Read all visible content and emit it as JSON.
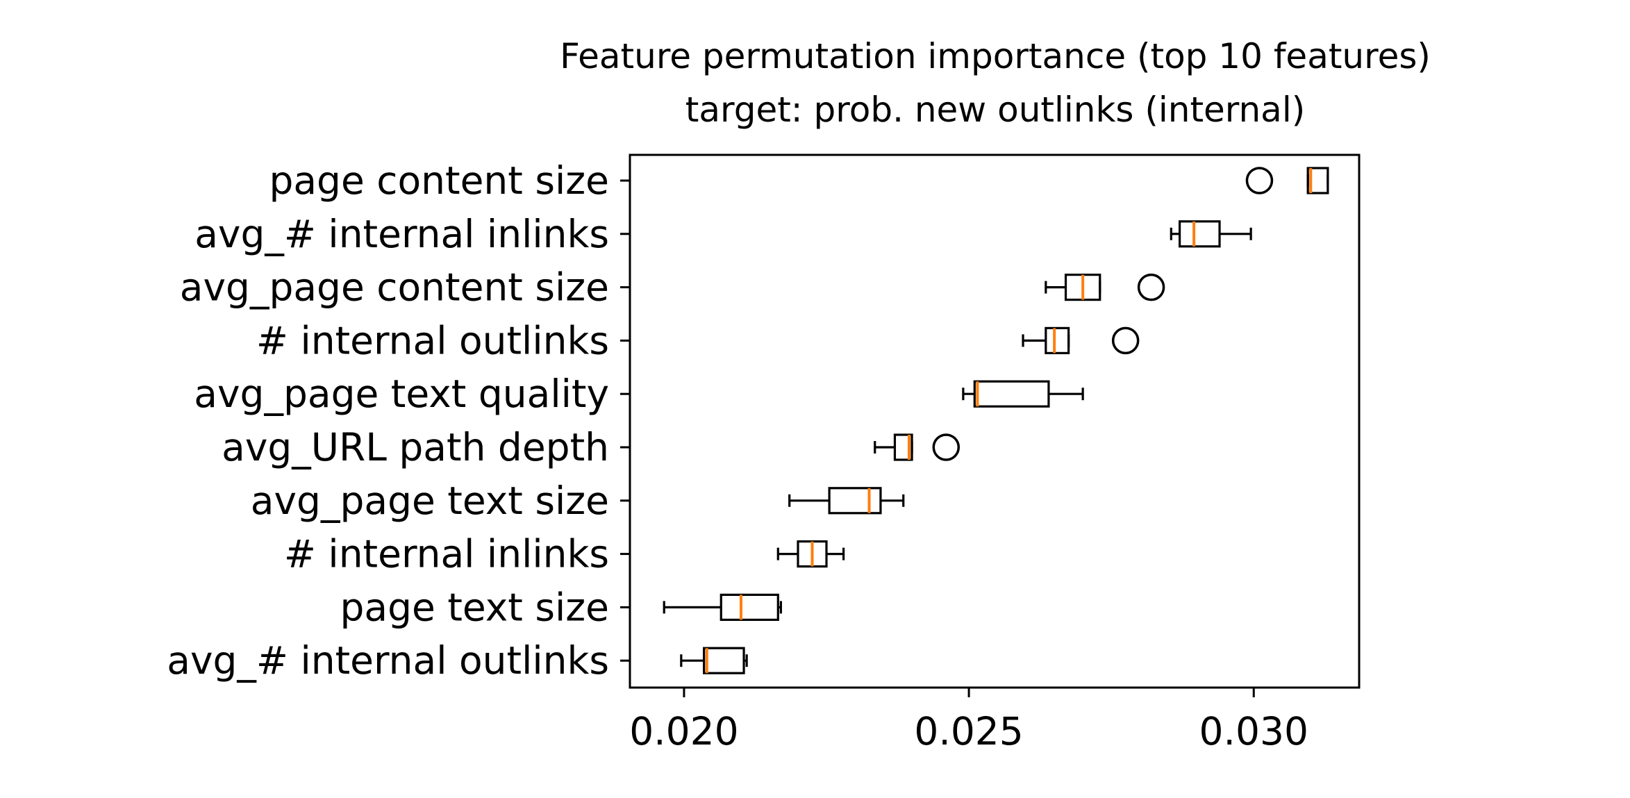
{
  "chart_data": {
    "type": "boxplot",
    "orientation": "horizontal",
    "title": "Feature permutation importance (top 10 features)",
    "subtitle": "target: prob. new outlinks (internal)",
    "xlabel": "",
    "ylabel": "",
    "xlim": [
      0.01905,
      0.03185
    ],
    "xticks": [
      0.02,
      0.025,
      0.03
    ],
    "xtick_labels": [
      "0.020",
      "0.025",
      "0.030"
    ],
    "grid": false,
    "colors": {
      "box": "#000000",
      "median": "#ff7f0e",
      "outlier": "#000000"
    },
    "categories": [
      "page content size",
      "avg_# internal inlinks",
      "avg_page content size",
      "# internal outlinks",
      "avg_page text quality",
      "avg_URL path depth",
      "avg_page text size",
      "# internal inlinks",
      "page text size",
      "avg_# internal outlinks"
    ],
    "boxes": [
      {
        "whisker_low": 0.03095,
        "q1": 0.03095,
        "median": 0.031,
        "q3": 0.0313,
        "whisker_high": 0.0313,
        "outliers": [
          0.0301
        ]
      },
      {
        "whisker_low": 0.02855,
        "q1": 0.0287,
        "median": 0.02895,
        "q3": 0.0294,
        "whisker_high": 0.02995,
        "outliers": []
      },
      {
        "whisker_low": 0.02635,
        "q1": 0.0267,
        "median": 0.027,
        "q3": 0.0273,
        "whisker_high": 0.0273,
        "outliers": [
          0.0282
        ]
      },
      {
        "whisker_low": 0.02595,
        "q1": 0.02635,
        "median": 0.0265,
        "q3": 0.02675,
        "whisker_high": 0.02675,
        "outliers": [
          0.02775
        ]
      },
      {
        "whisker_low": 0.0249,
        "q1": 0.0251,
        "median": 0.02515,
        "q3": 0.0264,
        "whisker_high": 0.027,
        "outliers": []
      },
      {
        "whisker_low": 0.02335,
        "q1": 0.0237,
        "median": 0.02395,
        "q3": 0.024,
        "whisker_high": 0.024,
        "outliers": [
          0.0246
        ]
      },
      {
        "whisker_low": 0.02185,
        "q1": 0.02255,
        "median": 0.02325,
        "q3": 0.02345,
        "whisker_high": 0.02385,
        "outliers": []
      },
      {
        "whisker_low": 0.02165,
        "q1": 0.022,
        "median": 0.02225,
        "q3": 0.0225,
        "whisker_high": 0.0228,
        "outliers": []
      },
      {
        "whisker_low": 0.01965,
        "q1": 0.02065,
        "median": 0.021,
        "q3": 0.02165,
        "whisker_high": 0.0217,
        "outliers": []
      },
      {
        "whisker_low": 0.01995,
        "q1": 0.02035,
        "median": 0.0204,
        "q3": 0.02105,
        "whisker_high": 0.0211,
        "outliers": []
      }
    ]
  }
}
